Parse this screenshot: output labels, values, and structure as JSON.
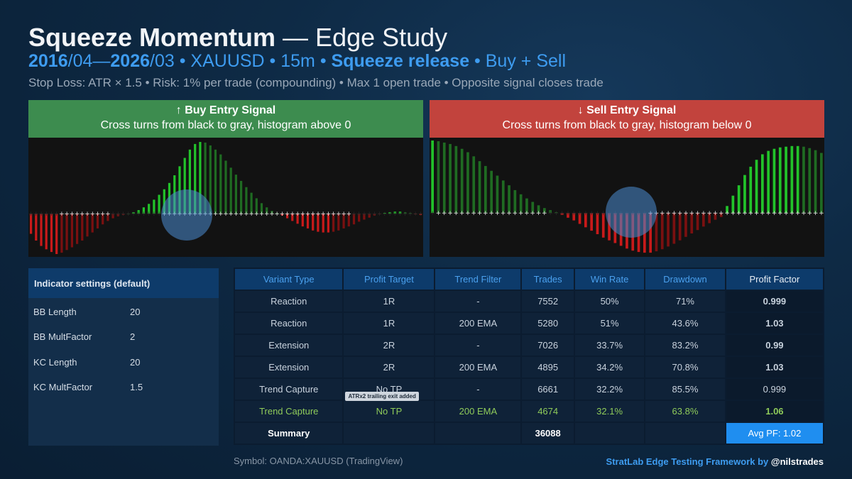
{
  "header": {
    "title_bold": "Squeeze Momentum",
    "title_rest": " — Edge Study",
    "sub_d1": "2016",
    "sub_d2": "/04—",
    "sub_d3": "2026",
    "sub_d4": "/03 • XAUUSD • 15m • ",
    "sub_bold": "Squeeze release",
    "sub_end": " • Buy + Sell",
    "desc": "Stop Loss: ATR × 1.5 • Risk: 1% per trade (compounding) • Max 1 open trade • Opposite signal closes trade"
  },
  "buy_panel": {
    "heading": "↑ Buy Entry Signal",
    "subtext": "Cross turns from black to gray, histogram above 0"
  },
  "sell_panel": {
    "heading": "↓ Sell Entry Signal",
    "subtext": "Cross turns from black to gray, histogram below 0"
  },
  "settings": {
    "heading": "Indicator settings (default)",
    "rows": [
      {
        "label": "BB Length",
        "value": "20"
      },
      {
        "label": "BB MultFactor",
        "value": "2"
      },
      {
        "label": "KC Length",
        "value": "20"
      },
      {
        "label": "KC MultFactor",
        "value": "1.5"
      }
    ]
  },
  "table": {
    "headers": [
      "Variant Type",
      "Profit Target",
      "Trend Filter",
      "Trades",
      "Win Rate",
      "Drawdown",
      "Profit Factor"
    ],
    "rows": [
      [
        "Reaction",
        "1R",
        "-",
        "7552",
        "50%",
        "71%",
        "0.999"
      ],
      [
        "Reaction",
        "1R",
        "200 EMA",
        "5280",
        "51%",
        "43.6%",
        "1.03"
      ],
      [
        "Extension",
        "2R",
        "-",
        "7026",
        "33.7%",
        "83.2%",
        "0.99"
      ],
      [
        "Extension",
        "2R",
        "200 EMA",
        "4895",
        "34.2%",
        "70.8%",
        "1.03"
      ],
      [
        "Trend Capture",
        "No TP",
        "-",
        "6661",
        "32.2%",
        "85.5%",
        "0.999"
      ],
      [
        "Trend Capture",
        "No TP",
        "200 EMA",
        "4674",
        "32.1%",
        "63.8%",
        "1.06"
      ]
    ],
    "badge": "ATRx2 trailing exit added",
    "summary_label": "Summary",
    "summary_trades": "36088",
    "summary_pf": "Avg PF: 1.02"
  },
  "footer": {
    "symbol": "Symbol: OANDA:XAUUSD (TradingView)",
    "credit": "StratLab Edge Testing Framework by ",
    "handle": "@nilstrades"
  },
  "colors": {
    "accent": "#3e9cf0",
    "buy": "#3d8c4f",
    "sell": "#c2433d",
    "bright_green": "#22c32a",
    "dark_green": "#1f6b22",
    "bright_red": "#c81a1a",
    "dark_red": "#7a1010"
  },
  "chart_data": [
    {
      "type": "bar",
      "title": "Buy Entry Signal — Squeeze Momentum histogram",
      "ylim": [
        -60,
        105
      ],
      "baseline": 0,
      "values": [
        -30,
        -40,
        -48,
        -53,
        -57,
        -60,
        -58,
        -54,
        -50,
        -45,
        -40,
        -34,
        -28,
        -22,
        -16,
        -11,
        -7,
        -4,
        -2,
        0,
        2,
        5,
        9,
        14,
        20,
        27,
        35,
        44,
        55,
        68,
        80,
        92,
        100,
        103,
        102,
        98,
        92,
        85,
        76,
        66,
        56,
        47,
        38,
        30,
        22,
        15,
        9,
        4,
        1,
        -3,
        -7,
        -11,
        -15,
        -19,
        -22,
        -25,
        -27,
        -28,
        -28,
        -27,
        -25,
        -22,
        -19,
        -16,
        -12,
        -9,
        -6,
        -3,
        -1,
        1,
        2,
        3,
        3,
        2,
        1,
        -1,
        -2
      ],
      "squeeze_dots": "white cross at zero line = squeeze release; dark cross = squeeze on",
      "highlight": "circled signal where histogram crosses above 0"
    },
    {
      "type": "bar",
      "title": "Sell Entry Signal — Squeeze Momentum histogram",
      "ylim": [
        -60,
        105
      ],
      "baseline": 0,
      "values": [
        105,
        104,
        102,
        100,
        97,
        93,
        88,
        82,
        75,
        68,
        61,
        54,
        47,
        40,
        33,
        27,
        21,
        16,
        11,
        7,
        4,
        1,
        -3,
        -7,
        -11,
        -16,
        -21,
        -26,
        -31,
        -36,
        -40,
        -44,
        -48,
        -52,
        -55,
        -57,
        -58,
        -58,
        -56,
        -53,
        -49,
        -45,
        -40,
        -35,
        -30,
        -25,
        -20,
        -15,
        -10,
        -6,
        10,
        25,
        40,
        55,
        67,
        77,
        85,
        90,
        93,
        95,
        96,
        97,
        97,
        96,
        94,
        91,
        87
      ],
      "highlight": "circled signal where histogram crosses below 0"
    }
  ]
}
